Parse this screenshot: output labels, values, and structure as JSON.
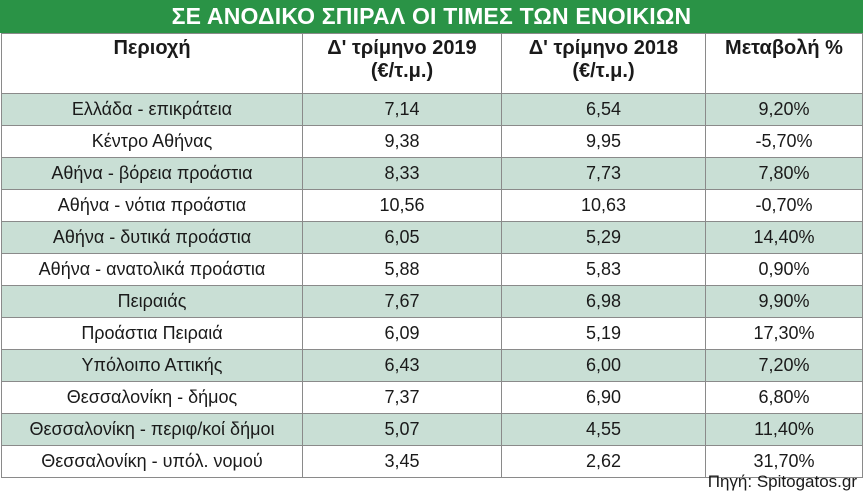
{
  "title": "ΣΕ ΑΝΟΔΙΚΟ ΣΠΙΡΑΛ ΟΙ ΤΙΜΕΣ ΤΩΝ ΕΝΟΙΚΙΩΝ",
  "headers": {
    "region": "Περιοχή",
    "q4_2019": "Δ' τρίμηνο 2019",
    "q4_2018": "Δ' τρίμηνο 2018",
    "unit": "(€/τ.μ.)",
    "change": "Μεταβολή %"
  },
  "rows": [
    {
      "region": "Ελλάδα - επικράτεια",
      "q4_2019": "7,14",
      "q4_2018": "6,54",
      "change": "9,20%"
    },
    {
      "region": "Κέντρο Αθήνας",
      "q4_2019": "9,38",
      "q4_2018": "9,95",
      "change": "-5,70%"
    },
    {
      "region": "Αθήνα - βόρεια προάστια",
      "q4_2019": "8,33",
      "q4_2018": "7,73",
      "change": "7,80%"
    },
    {
      "region": "Αθήνα - νότια προάστια",
      "q4_2019": "10,56",
      "q4_2018": "10,63",
      "change": "-0,70%"
    },
    {
      "region": "Αθήνα - δυτικά προάστια",
      "q4_2019": "6,05",
      "q4_2018": "5,29",
      "change": "14,40%"
    },
    {
      "region": "Αθήνα - ανατολικά προάστια",
      "q4_2019": "5,88",
      "q4_2018": "5,83",
      "change": "0,90%"
    },
    {
      "region": "Πειραιάς",
      "q4_2019": "7,67",
      "q4_2018": "6,98",
      "change": "9,90%"
    },
    {
      "region": "Προάστια Πειραιά",
      "q4_2019": "6,09",
      "q4_2018": "5,19",
      "change": "17,30%"
    },
    {
      "region": "Υπόλοιπο Αττικής",
      "q4_2019": "6,43",
      "q4_2018": "6,00",
      "change": "7,20%"
    },
    {
      "region": "Θεσσαλονίκη - δήμος",
      "q4_2019": "7,37",
      "q4_2018": "6,90",
      "change": "6,80%"
    },
    {
      "region": "Θεσσαλονίκη - περιφ/κοί δήμοι",
      "q4_2019": "5,07",
      "q4_2018": "4,55",
      "change": "11,40%"
    },
    {
      "region": "Θεσσαλονίκη - υπόλ. νομού",
      "q4_2019": "3,45",
      "q4_2018": "2,62",
      "change": "31,70%"
    }
  ],
  "source": "Πηγή: Spitogatos.gr",
  "colors": {
    "title_bg": "#2a9346",
    "shaded_row": "#c9dfd5",
    "border": "#8a8a8a"
  }
}
